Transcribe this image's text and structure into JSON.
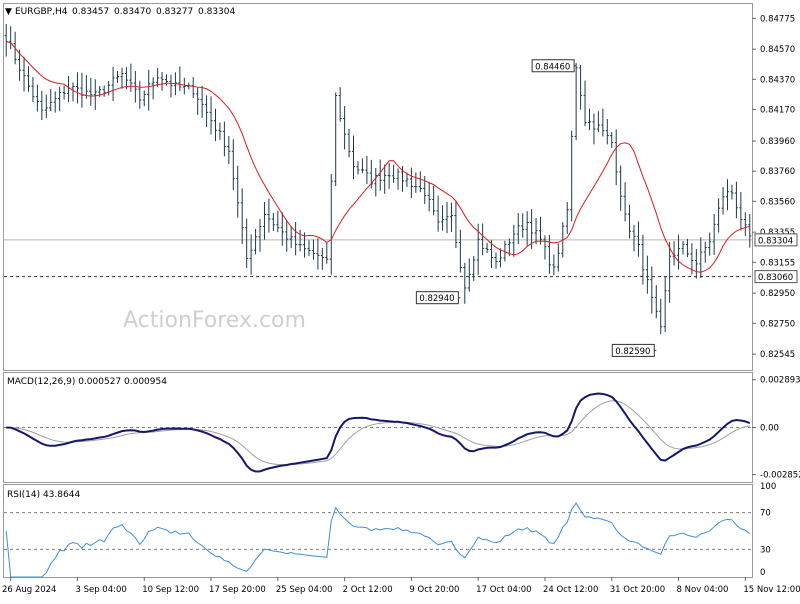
{
  "header": {
    "arrow": "▼",
    "symbol": "EURGBP,H4",
    "open": "0.83457",
    "high": "0.83470",
    "low": "0.83277",
    "close": "0.83304"
  },
  "watermark": "ActionForex.com",
  "colors": {
    "price": "#1c3a4a",
    "ma": "#d62020",
    "macd": "#16166e",
    "signal": "#a0a0a0",
    "rsi": "#3d8fd9",
    "grid": "#808080"
  },
  "chart_data": [
    {
      "type": "line",
      "name": "price",
      "title": "EURGBP,H4",
      "y_ticks": [
        "0.84775",
        "0.84570",
        "0.84370",
        "0.84170",
        "0.83960",
        "0.83760",
        "0.83560",
        "0.83355",
        "0.83155",
        "0.82950",
        "0.82750",
        "0.82545"
      ],
      "ylim": [
        0.8244,
        0.8487
      ],
      "current_price": "0.83304",
      "level_line": "0.83060",
      "x_labels": [
        "26 Aug 2024",
        "3 Sep 04:00",
        "10 Sep 12:00",
        "17 Sep 20:00",
        "25 Sep 04:00",
        "2 Oct 12:00",
        "9 Oct 20:00",
        "17 Oct 04:00",
        "24 Oct 12:00",
        "31 Oct 20:00",
        "8 Nov 04:00",
        "15 Nov 12:00"
      ],
      "annotations": [
        {
          "label": "0.84460",
          "x_index": 128,
          "value": 0.8446
        },
        {
          "label": "0.82940",
          "x_index": 102,
          "value": 0.8294
        },
        {
          "label": "0.82590",
          "x_index": 146,
          "value": 0.8259
        }
      ],
      "anchors": [
        [
          0,
          0.8465
        ],
        [
          4,
          0.8438
        ],
        [
          8,
          0.8415
        ],
        [
          14,
          0.8432
        ],
        [
          20,
          0.8426
        ],
        [
          26,
          0.844
        ],
        [
          30,
          0.8424
        ],
        [
          34,
          0.844
        ],
        [
          38,
          0.8432
        ],
        [
          42,
          0.843
        ],
        [
          46,
          0.841
        ],
        [
          50,
          0.839
        ],
        [
          54,
          0.8318
        ],
        [
          58,
          0.8348
        ],
        [
          62,
          0.8335
        ],
        [
          66,
          0.8325
        ],
        [
          70,
          0.832
        ],
        [
          72,
          0.8315
        ],
        [
          74,
          0.8425
        ],
        [
          76,
          0.84
        ],
        [
          78,
          0.838
        ],
        [
          82,
          0.837
        ],
        [
          86,
          0.8375
        ],
        [
          90,
          0.837
        ],
        [
          94,
          0.8362
        ],
        [
          97,
          0.834
        ],
        [
          100,
          0.8345
        ],
        [
          103,
          0.83
        ],
        [
          106,
          0.833
        ],
        [
          110,
          0.8315
        ],
        [
          114,
          0.8335
        ],
        [
          117,
          0.8342
        ],
        [
          120,
          0.833
        ],
        [
          123,
          0.831
        ],
        [
          126,
          0.835
        ],
        [
          128,
          0.8446
        ],
        [
          130,
          0.841
        ],
        [
          133,
          0.8405
        ],
        [
          136,
          0.8395
        ],
        [
          139,
          0.8345
        ],
        [
          142,
          0.8325
        ],
        [
          145,
          0.829
        ],
        [
          147,
          0.827
        ],
        [
          149,
          0.832
        ],
        [
          152,
          0.8325
        ],
        [
          155,
          0.8315
        ],
        [
          158,
          0.833
        ],
        [
          161,
          0.836
        ],
        [
          163,
          0.8362
        ],
        [
          165,
          0.8345
        ],
        [
          167,
          0.833
        ]
      ]
    },
    {
      "type": "line",
      "name": "MACD",
      "title": "MACD(12,26,9) 0.000527 0.000954",
      "y_ticks": [
        "0.002893",
        "0.00",
        "-0.002852"
      ],
      "ylim": [
        -0.0033,
        0.0033
      ]
    },
    {
      "type": "line",
      "name": "RSI",
      "title": "RSI(14) 43.8644",
      "y_ticks": [
        "100",
        "70",
        "30",
        "0"
      ],
      "ylim": [
        0,
        100
      ],
      "value": 43.8644
    }
  ]
}
